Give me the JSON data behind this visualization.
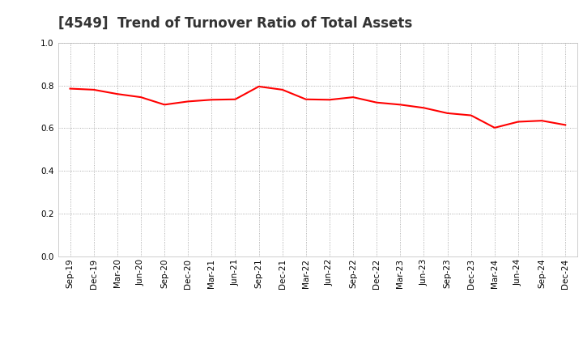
{
  "title": "[4549]  Trend of Turnover Ratio of Total Assets",
  "line_color": "#FF0000",
  "line_width": 1.5,
  "background_color": "#FFFFFF",
  "grid_color": "#999999",
  "ylim": [
    0.0,
    1.0
  ],
  "yticks": [
    0.0,
    0.2,
    0.4,
    0.6,
    0.8,
    1.0
  ],
  "x_labels": [
    "Sep-19",
    "Dec-19",
    "Mar-20",
    "Jun-20",
    "Sep-20",
    "Dec-20",
    "Mar-21",
    "Jun-21",
    "Sep-21",
    "Dec-21",
    "Mar-22",
    "Jun-22",
    "Sep-22",
    "Dec-22",
    "Mar-23",
    "Jun-23",
    "Sep-23",
    "Dec-23",
    "Mar-24",
    "Jun-24",
    "Sep-24",
    "Dec-24"
  ],
  "values": [
    0.785,
    0.78,
    0.76,
    0.745,
    0.71,
    0.725,
    0.733,
    0.735,
    0.795,
    0.78,
    0.735,
    0.733,
    0.745,
    0.72,
    0.71,
    0.695,
    0.67,
    0.66,
    0.602,
    0.63,
    0.635,
    0.615
  ],
  "title_fontsize": 12,
  "tick_label_fontsize": 7.5
}
